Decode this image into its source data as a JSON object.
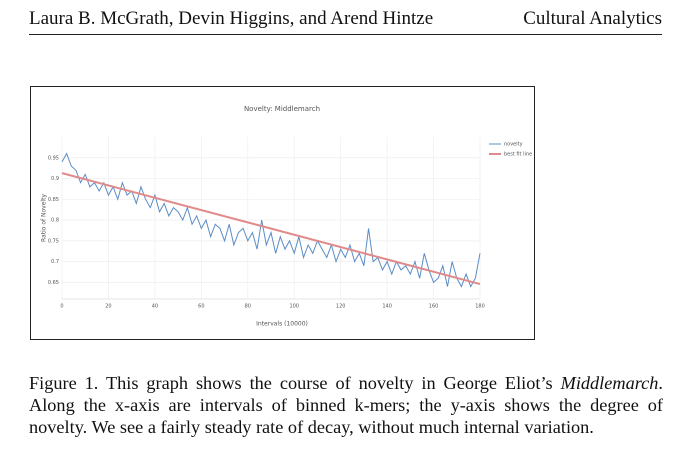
{
  "header": {
    "authors": "Laura B. McGrath, Devin Higgins, and Arend Hintze",
    "journal": "Cultural Analytics"
  },
  "chart_data": {
    "type": "line",
    "title": "Novelty: Middlemarch",
    "x_label": "Intervals (10000)",
    "y_label": "Ratio of Novelty",
    "xlim": [
      0,
      180
    ],
    "xticks": [
      0,
      20,
      40,
      60,
      80,
      100,
      120,
      140,
      160,
      180
    ],
    "ylim": [
      0.61,
      1.0
    ],
    "yticks": [
      0.65,
      0.7,
      0.75,
      0.8,
      0.85,
      0.9,
      0.95
    ],
    "grid": true,
    "legend": "top-right",
    "series": [
      {
        "name": "novelty",
        "color": "#5b8cc6",
        "x": [
          0,
          2,
          4,
          6,
          8,
          10,
          12,
          14,
          16,
          18,
          20,
          22,
          24,
          26,
          28,
          30,
          32,
          34,
          36,
          38,
          40,
          42,
          44,
          46,
          48,
          50,
          52,
          54,
          56,
          58,
          60,
          62,
          64,
          66,
          68,
          70,
          72,
          74,
          76,
          78,
          80,
          82,
          84,
          86,
          88,
          90,
          92,
          94,
          96,
          98,
          100,
          102,
          104,
          106,
          108,
          110,
          112,
          114,
          116,
          118,
          120,
          122,
          124,
          126,
          128,
          130,
          132,
          134,
          136,
          138,
          140,
          142,
          144,
          146,
          148,
          150,
          152,
          154,
          156,
          158,
          160,
          162,
          164,
          166,
          168,
          170,
          172,
          174,
          176,
          178,
          180
        ],
        "values": [
          0.94,
          0.96,
          0.93,
          0.92,
          0.89,
          0.91,
          0.88,
          0.89,
          0.87,
          0.89,
          0.86,
          0.88,
          0.85,
          0.89,
          0.86,
          0.87,
          0.84,
          0.88,
          0.85,
          0.83,
          0.86,
          0.82,
          0.84,
          0.81,
          0.83,
          0.82,
          0.8,
          0.83,
          0.79,
          0.81,
          0.78,
          0.8,
          0.76,
          0.79,
          0.78,
          0.75,
          0.79,
          0.74,
          0.77,
          0.78,
          0.75,
          0.77,
          0.73,
          0.8,
          0.74,
          0.77,
          0.72,
          0.76,
          0.73,
          0.75,
          0.72,
          0.76,
          0.71,
          0.74,
          0.72,
          0.75,
          0.73,
          0.71,
          0.74,
          0.7,
          0.73,
          0.71,
          0.74,
          0.7,
          0.72,
          0.69,
          0.78,
          0.7,
          0.71,
          0.68,
          0.7,
          0.67,
          0.7,
          0.68,
          0.69,
          0.67,
          0.7,
          0.66,
          0.72,
          0.68,
          0.65,
          0.66,
          0.69,
          0.64,
          0.7,
          0.66,
          0.64,
          0.67,
          0.64,
          0.66,
          0.72
        ]
      },
      {
        "name": "best fit line",
        "color": "#e08a8a",
        "x": [
          0,
          180
        ],
        "values": [
          0.913,
          0.646
        ]
      }
    ]
  },
  "caption": {
    "prefix": "Figure 1. This graph shows the course of novelty in George Eliot’s ",
    "work": "Middlemarch",
    "rest": ". Along the x-axis are intervals of binned k-mers; the y-axis shows the degree of novelty. We see a fairly steady rate of decay, without much internal variation."
  }
}
